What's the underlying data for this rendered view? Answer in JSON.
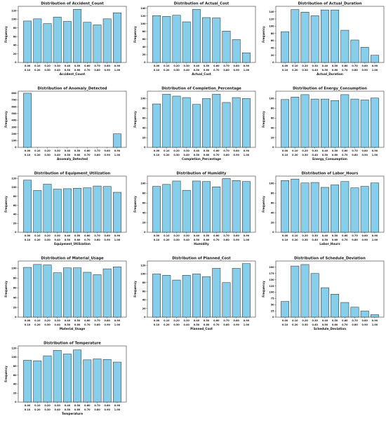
{
  "chart_data": [
    {
      "type": "bar",
      "title": "Distribution of Accident_Count",
      "xlabel": "Accident_Count",
      "ylabel": "Frequency",
      "ylim": [
        0,
        130
      ],
      "yticks": [
        0,
        20,
        40,
        60,
        80,
        100,
        120
      ],
      "xticks_top": [
        "0.00",
        "0.10",
        "0.20",
        "0.30",
        "0.40",
        "0.50",
        "0.60",
        "0.70",
        "0.80",
        "0.90"
      ],
      "xticks_bottom": [
        "0.10",
        "0.20",
        "0.30",
        "0.40",
        "0.50",
        "0.60",
        "0.70",
        "0.80",
        "0.90",
        "1.00"
      ],
      "values": [
        96,
        101,
        90,
        105,
        95,
        123,
        93,
        87,
        101,
        115
      ]
    },
    {
      "type": "bar",
      "title": "Distribution of Actual_Cost",
      "xlabel": "Actual_Cost",
      "ylabel": "Frequency",
      "ylim": [
        0,
        145
      ],
      "yticks": [
        0,
        20,
        40,
        60,
        80,
        100,
        120,
        140
      ],
      "xticks_top": [
        "0.00",
        "0.10",
        "0.20",
        "0.30",
        "0.40",
        "0.50",
        "0.60",
        "0.70",
        "0.80",
        "0.90"
      ],
      "xticks_bottom": [
        "0.10",
        "0.20",
        "0.30",
        "0.40",
        "0.50",
        "0.60",
        "0.70",
        "0.80",
        "0.90",
        "1.00"
      ],
      "values": [
        121,
        119,
        122,
        105,
        137,
        116,
        115,
        81,
        59,
        25
      ]
    },
    {
      "type": "bar",
      "title": "Distribution of Actual_Duration",
      "xlabel": "Actual_Duration",
      "ylabel": "Frequency",
      "ylim": [
        0,
        155
      ],
      "yticks": [
        0,
        20,
        40,
        60,
        80,
        100,
        120,
        140
      ],
      "xticks_top": [
        "0.00",
        "0.10",
        "0.20",
        "0.30",
        "0.40",
        "0.50",
        "0.60",
        "0.70",
        "0.80",
        "0.90"
      ],
      "xticks_bottom": [
        "0.10",
        "0.20",
        "0.30",
        "0.40",
        "0.50",
        "0.60",
        "0.70",
        "0.80",
        "0.90",
        "1.00"
      ],
      "values": [
        85,
        146,
        139,
        129,
        145,
        145,
        89,
        62,
        42,
        20
      ]
    },
    {
      "type": "bar",
      "title": "Distribution of Anomaly_Detected",
      "xlabel": "Anomaly_Detected",
      "ylabel": "Frequency",
      "ylim": [
        0,
        830
      ],
      "yticks": [
        0,
        100,
        200,
        300,
        400,
        500,
        600,
        700,
        800
      ],
      "xticks_top": [
        "0.00",
        "0.10",
        "0.20",
        "0.30",
        "0.40",
        "0.50",
        "0.60",
        "0.70",
        "0.80",
        "0.90"
      ],
      "xticks_bottom": [
        "0.10",
        "0.20",
        "0.30",
        "0.40",
        "0.50",
        "0.60",
        "0.70",
        "0.80",
        "0.90",
        "1.00"
      ],
      "values": [
        800,
        0,
        0,
        0,
        0,
        0,
        0,
        0,
        0,
        200
      ]
    },
    {
      "type": "bar",
      "title": "Distribution of Completion_Percentage",
      "xlabel": "Completion_Percentage",
      "ylabel": "Frequency",
      "ylim": [
        0,
        115
      ],
      "yticks": [
        0,
        20,
        40,
        60,
        80,
        100
      ],
      "xticks_top": [
        "0.00",
        "0.10",
        "0.20",
        "0.30",
        "0.40",
        "0.50",
        "0.60",
        "0.70",
        "0.80",
        "0.90"
      ],
      "xticks_bottom": [
        "0.10",
        "0.20",
        "0.30",
        "0.40",
        "0.50",
        "0.60",
        "0.70",
        "0.80",
        "0.90",
        "1.00"
      ],
      "values": [
        89,
        109,
        105,
        102,
        88,
        100,
        109,
        92,
        102,
        100
      ]
    },
    {
      "type": "bar",
      "title": "Distribution of Energy_Consumption",
      "xlabel": "Energy_Consumption",
      "ylabel": "Frequency",
      "ylim": [
        0,
        115
      ],
      "yticks": [
        0,
        20,
        40,
        60,
        80,
        100
      ],
      "xticks_top": [
        "0.00",
        "0.10",
        "0.20",
        "0.30",
        "0.40",
        "0.50",
        "0.60",
        "0.70",
        "0.80",
        "0.90"
      ],
      "xticks_bottom": [
        "0.10",
        "0.20",
        "0.30",
        "0.40",
        "0.50",
        "0.60",
        "0.70",
        "0.80",
        "0.90",
        "1.00"
      ],
      "values": [
        98,
        103,
        108,
        99,
        99,
        96,
        108,
        99,
        97,
        101
      ]
    },
    {
      "type": "bar",
      "title": "Distribution of Equipment_Utilization",
      "xlabel": "Equipment_Utilization",
      "ylabel": "Frequency",
      "ylim": [
        0,
        125
      ],
      "yticks": [
        0,
        20,
        40,
        60,
        80,
        100,
        120
      ],
      "xticks_top": [
        "0.00",
        "0.10",
        "0.20",
        "0.30",
        "0.40",
        "0.50",
        "0.60",
        "0.70",
        "0.80",
        "0.90"
      ],
      "xticks_bottom": [
        "0.10",
        "0.20",
        "0.30",
        "0.40",
        "0.50",
        "0.60",
        "0.70",
        "0.80",
        "0.90",
        "1.00"
      ],
      "values": [
        116,
        93,
        107,
        96,
        97,
        98,
        99,
        103,
        102,
        89
      ]
    },
    {
      "type": "bar",
      "title": "Distribution of Humidity",
      "xlabel": "Humidity",
      "ylabel": "Frequency",
      "ylim": [
        0,
        115
      ],
      "yticks": [
        0,
        20,
        40,
        60,
        80,
        100
      ],
      "xticks_top": [
        "0.00",
        "0.10",
        "0.20",
        "0.30",
        "0.40",
        "0.50",
        "0.60",
        "0.70",
        "0.80",
        "0.90"
      ],
      "xticks_bottom": [
        "0.10",
        "0.20",
        "0.30",
        "0.40",
        "0.50",
        "0.60",
        "0.70",
        "0.80",
        "0.90",
        "1.00"
      ],
      "values": [
        94,
        98,
        105,
        86,
        105,
        104,
        93,
        110,
        106,
        104
      ]
    },
    {
      "type": "bar",
      "title": "Distribution of Labor_Hours",
      "xlabel": "Labor_Hours",
      "ylabel": "Frequency",
      "ylim": [
        0,
        115
      ],
      "yticks": [
        0,
        20,
        40,
        60,
        80,
        100
      ],
      "xticks_top": [
        "0.00",
        "0.10",
        "0.20",
        "0.30",
        "0.40",
        "0.50",
        "0.60",
        "0.70",
        "0.80",
        "0.90"
      ],
      "xticks_bottom": [
        "0.10",
        "0.20",
        "0.30",
        "0.40",
        "0.50",
        "0.60",
        "0.70",
        "0.80",
        "0.90",
        "1.00"
      ],
      "values": [
        106,
        109,
        101,
        102,
        92,
        97,
        104,
        91,
        94,
        101
      ]
    },
    {
      "type": "bar",
      "title": "Distribution of Material_Usage",
      "xlabel": "Material_Usage",
      "ylabel": "Frequency",
      "ylim": [
        0,
        115
      ],
      "yticks": [
        0,
        20,
        40,
        60,
        80,
        100
      ],
      "xticks_top": [
        "0.00",
        "0.10",
        "0.20",
        "0.30",
        "0.40",
        "0.50",
        "0.60",
        "0.70",
        "0.80",
        "0.90"
      ],
      "xticks_bottom": [
        "0.10",
        "0.20",
        "0.30",
        "0.40",
        "0.50",
        "0.60",
        "0.70",
        "0.80",
        "0.90",
        "1.00"
      ],
      "values": [
        102,
        108,
        107,
        91,
        101,
        101,
        92,
        87,
        99,
        103
      ]
    },
    {
      "type": "bar",
      "title": "Distribution of Planned_Cost",
      "xlabel": "Planned_Cost",
      "ylabel": "Frequency",
      "ylim": [
        0,
        130
      ],
      "yticks": [
        0,
        20,
        40,
        60,
        80,
        100,
        120
      ],
      "xticks_top": [
        "0.00",
        "0.10",
        "0.20",
        "0.30",
        "0.40",
        "0.50",
        "0.60",
        "0.70",
        "0.80",
        "0.90"
      ],
      "xticks_bottom": [
        "0.10",
        "0.20",
        "0.30",
        "0.40",
        "0.50",
        "0.60",
        "0.70",
        "0.80",
        "0.90",
        "1.00"
      ],
      "values": [
        100,
        97,
        86,
        97,
        100,
        94,
        113,
        80,
        113,
        124
      ]
    },
    {
      "type": "bar",
      "title": "Distribution of Schedule_Deviation",
      "xlabel": "Schedule_Deviation",
      "ylabel": "Frequency",
      "ylim": [
        0,
        225
      ],
      "yticks": [
        0,
        25,
        50,
        75,
        100,
        125,
        150,
        175,
        200
      ],
      "xticks_top": [
        "0.00",
        "0.10",
        "0.20",
        "0.30",
        "0.40",
        "0.50",
        "0.60",
        "0.70",
        "0.80",
        "0.90"
      ],
      "xticks_bottom": [
        "0.10",
        "0.20",
        "0.30",
        "0.40",
        "0.50",
        "0.60",
        "0.70",
        "0.80",
        "0.90",
        "1.00"
      ],
      "values": [
        63,
        205,
        211,
        175,
        118,
        92,
        59,
        40,
        25,
        10
      ]
    },
    {
      "type": "bar",
      "title": "Distribution of Temperature",
      "xlabel": "Temperature",
      "ylabel": "Frequency",
      "ylim": [
        0,
        125
      ],
      "yticks": [
        0,
        20,
        40,
        60,
        80,
        100,
        120
      ],
      "xticks_top": [
        "0.00",
        "0.10",
        "0.20",
        "0.30",
        "0.40",
        "0.50",
        "0.60",
        "0.70",
        "0.80",
        "0.90"
      ],
      "xticks_bottom": [
        "0.10",
        "0.20",
        "0.30",
        "0.40",
        "0.50",
        "0.60",
        "0.70",
        "0.80",
        "0.90",
        "1.00"
      ],
      "values": [
        93,
        92,
        103,
        115,
        107,
        116,
        94,
        96,
        95,
        89
      ]
    }
  ]
}
